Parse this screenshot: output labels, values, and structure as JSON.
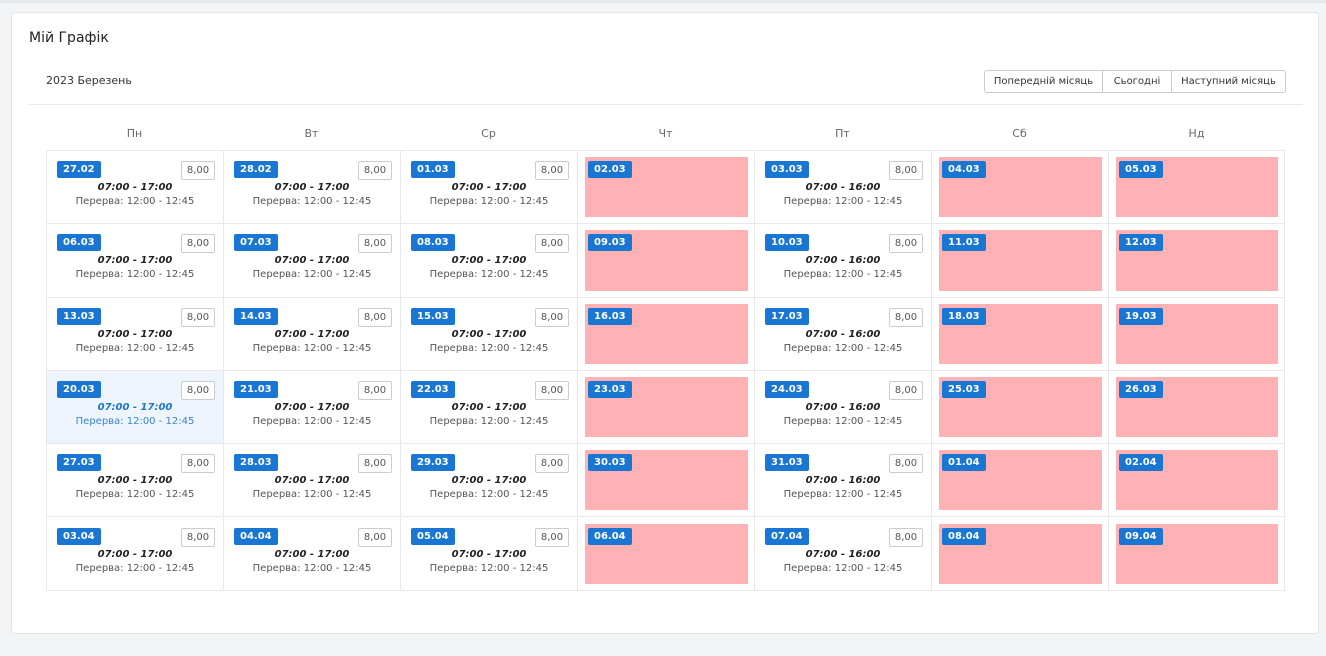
{
  "title": "Мій Графік",
  "month_label": "2023 Березень",
  "nav": {
    "prev": "Попередній місяць",
    "today": "Сьогодні",
    "next": "Наступний місяць"
  },
  "days": [
    "Пн",
    "Вт",
    "Ср",
    "Чт",
    "Пт",
    "Сб",
    "Нд"
  ],
  "break_label": "Перерва: 12:00 - 12:45",
  "colors": {
    "accent": "#1976d2",
    "off_day": "#ffb1b3",
    "today_bg": "#eef4fb"
  },
  "weeks": [
    [
      {
        "date": "27.02",
        "hours": "8,00",
        "time": "07:00 - 17:00"
      },
      {
        "date": "28.02",
        "hours": "8,00",
        "time": "07:00 - 17:00"
      },
      {
        "date": "01.03",
        "hours": "8,00",
        "time": "07:00 - 17:00"
      },
      {
        "date": "02.03",
        "off": true
      },
      {
        "date": "03.03",
        "hours": "8,00",
        "time": "07:00 - 16:00"
      },
      {
        "date": "04.03",
        "off": true
      },
      {
        "date": "05.03",
        "off": true
      }
    ],
    [
      {
        "date": "06.03",
        "hours": "8,00",
        "time": "07:00 - 17:00"
      },
      {
        "date": "07.03",
        "hours": "8,00",
        "time": "07:00 - 17:00"
      },
      {
        "date": "08.03",
        "hours": "8,00",
        "time": "07:00 - 17:00"
      },
      {
        "date": "09.03",
        "off": true
      },
      {
        "date": "10.03",
        "hours": "8,00",
        "time": "07:00 - 16:00"
      },
      {
        "date": "11.03",
        "off": true
      },
      {
        "date": "12.03",
        "off": true
      }
    ],
    [
      {
        "date": "13.03",
        "hours": "8,00",
        "time": "07:00 - 17:00"
      },
      {
        "date": "14.03",
        "hours": "8,00",
        "time": "07:00 - 17:00"
      },
      {
        "date": "15.03",
        "hours": "8,00",
        "time": "07:00 - 17:00"
      },
      {
        "date": "16.03",
        "off": true
      },
      {
        "date": "17.03",
        "hours": "8,00",
        "time": "07:00 - 16:00"
      },
      {
        "date": "18.03",
        "off": true
      },
      {
        "date": "19.03",
        "off": true
      }
    ],
    [
      {
        "date": "20.03",
        "hours": "8,00",
        "time": "07:00 - 17:00",
        "today": true
      },
      {
        "date": "21.03",
        "hours": "8,00",
        "time": "07:00 - 17:00"
      },
      {
        "date": "22.03",
        "hours": "8,00",
        "time": "07:00 - 17:00"
      },
      {
        "date": "23.03",
        "off": true
      },
      {
        "date": "24.03",
        "hours": "8,00",
        "time": "07:00 - 16:00"
      },
      {
        "date": "25.03",
        "off": true
      },
      {
        "date": "26.03",
        "off": true
      }
    ],
    [
      {
        "date": "27.03",
        "hours": "8,00",
        "time": "07:00 - 17:00"
      },
      {
        "date": "28.03",
        "hours": "8,00",
        "time": "07:00 - 17:00"
      },
      {
        "date": "29.03",
        "hours": "8,00",
        "time": "07:00 - 17:00"
      },
      {
        "date": "30.03",
        "off": true
      },
      {
        "date": "31.03",
        "hours": "8,00",
        "time": "07:00 - 16:00"
      },
      {
        "date": "01.04",
        "off": true
      },
      {
        "date": "02.04",
        "off": true
      }
    ],
    [
      {
        "date": "03.04",
        "hours": "8,00",
        "time": "07:00 - 17:00"
      },
      {
        "date": "04.04",
        "hours": "8,00",
        "time": "07:00 - 17:00"
      },
      {
        "date": "05.04",
        "hours": "8,00",
        "time": "07:00 - 17:00"
      },
      {
        "date": "06.04",
        "off": true
      },
      {
        "date": "07.04",
        "hours": "8,00",
        "time": "07:00 - 16:00"
      },
      {
        "date": "08.04",
        "off": true
      },
      {
        "date": "09.04",
        "off": true
      }
    ]
  ]
}
